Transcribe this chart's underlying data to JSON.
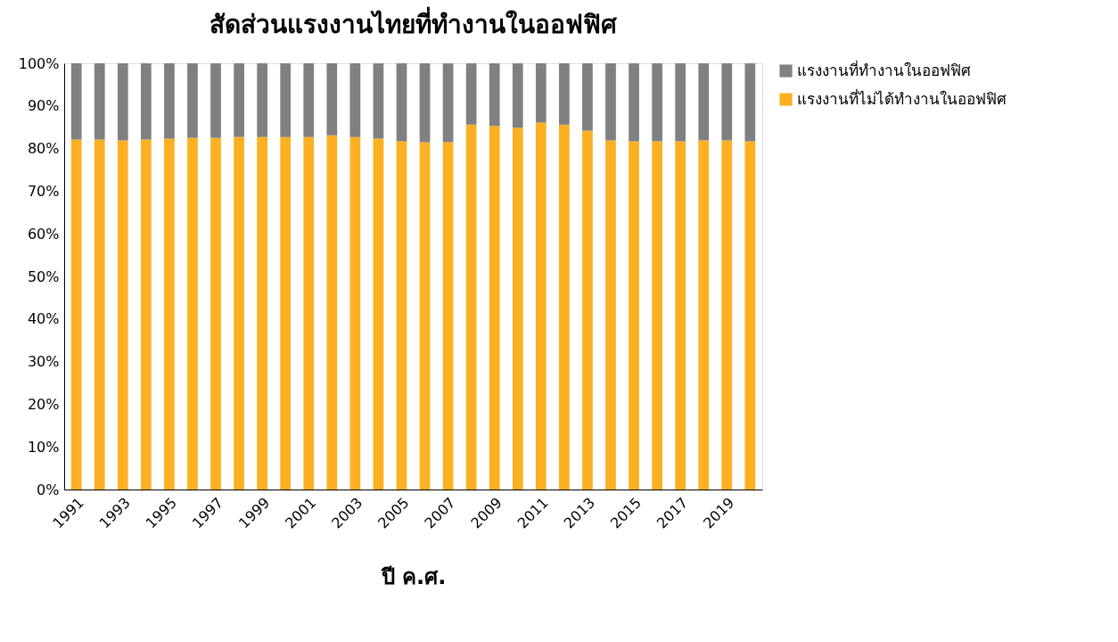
{
  "chart_data": {
    "type": "bar",
    "stacked": true,
    "title": "สัดส่วนแรงงานไทยที่ทำงานในออฟฟิศ",
    "xlabel": "ปี ค.ศ.",
    "categories": [
      "1991",
      null,
      "1993",
      null,
      "1995",
      null,
      "1997",
      null,
      "1999",
      null,
      "2001",
      null,
      "2003",
      null,
      "2005",
      null,
      "2007",
      null,
      "2009",
      null,
      "2011",
      null,
      "2013",
      null,
      "2015",
      null,
      "2017",
      null,
      "2019",
      null
    ],
    "series": [
      {
        "name": "แรงงานที่ไม่ได้ทำงานในออฟฟิศ",
        "color": "#fdb022",
        "values": [
          82.1,
          82.1,
          81.9,
          82.1,
          82.3,
          82.5,
          82.5,
          82.7,
          82.7,
          82.7,
          82.7,
          83.1,
          82.7,
          82.3,
          81.7,
          81.5,
          81.5,
          85.6,
          85.3,
          84.9,
          86.1,
          85.6,
          84.2,
          81.9,
          81.7,
          81.7,
          81.7,
          81.9,
          81.9,
          81.7
        ]
      },
      {
        "name": "แรงงานที่ทำงานในออฟฟิศ",
        "color": "#808080",
        "values": [
          17.9,
          17.9,
          18.1,
          17.9,
          17.7,
          17.5,
          17.5,
          17.3,
          17.3,
          17.3,
          17.3,
          16.9,
          17.3,
          17.7,
          18.3,
          18.5,
          18.5,
          14.4,
          14.7,
          15.1,
          13.9,
          14.4,
          15.8,
          18.1,
          18.3,
          18.3,
          18.3,
          18.1,
          18.1,
          18.3
        ]
      }
    ],
    "ylim": [
      0,
      100
    ],
    "yticks": [
      {
        "value": 0,
        "label": "0%"
      },
      {
        "value": 10,
        "label": "10%"
      },
      {
        "value": 20,
        "label": "20%"
      },
      {
        "value": 30,
        "label": "30%"
      },
      {
        "value": 40,
        "label": "40%"
      },
      {
        "value": 50,
        "label": "50%"
      },
      {
        "value": 60,
        "label": "60%"
      },
      {
        "value": 70,
        "label": "70%"
      },
      {
        "value": 80,
        "label": "80%"
      },
      {
        "value": 90,
        "label": "90%"
      },
      {
        "value": 100,
        "label": "100%"
      }
    ],
    "grid": false,
    "legend": "right"
  }
}
